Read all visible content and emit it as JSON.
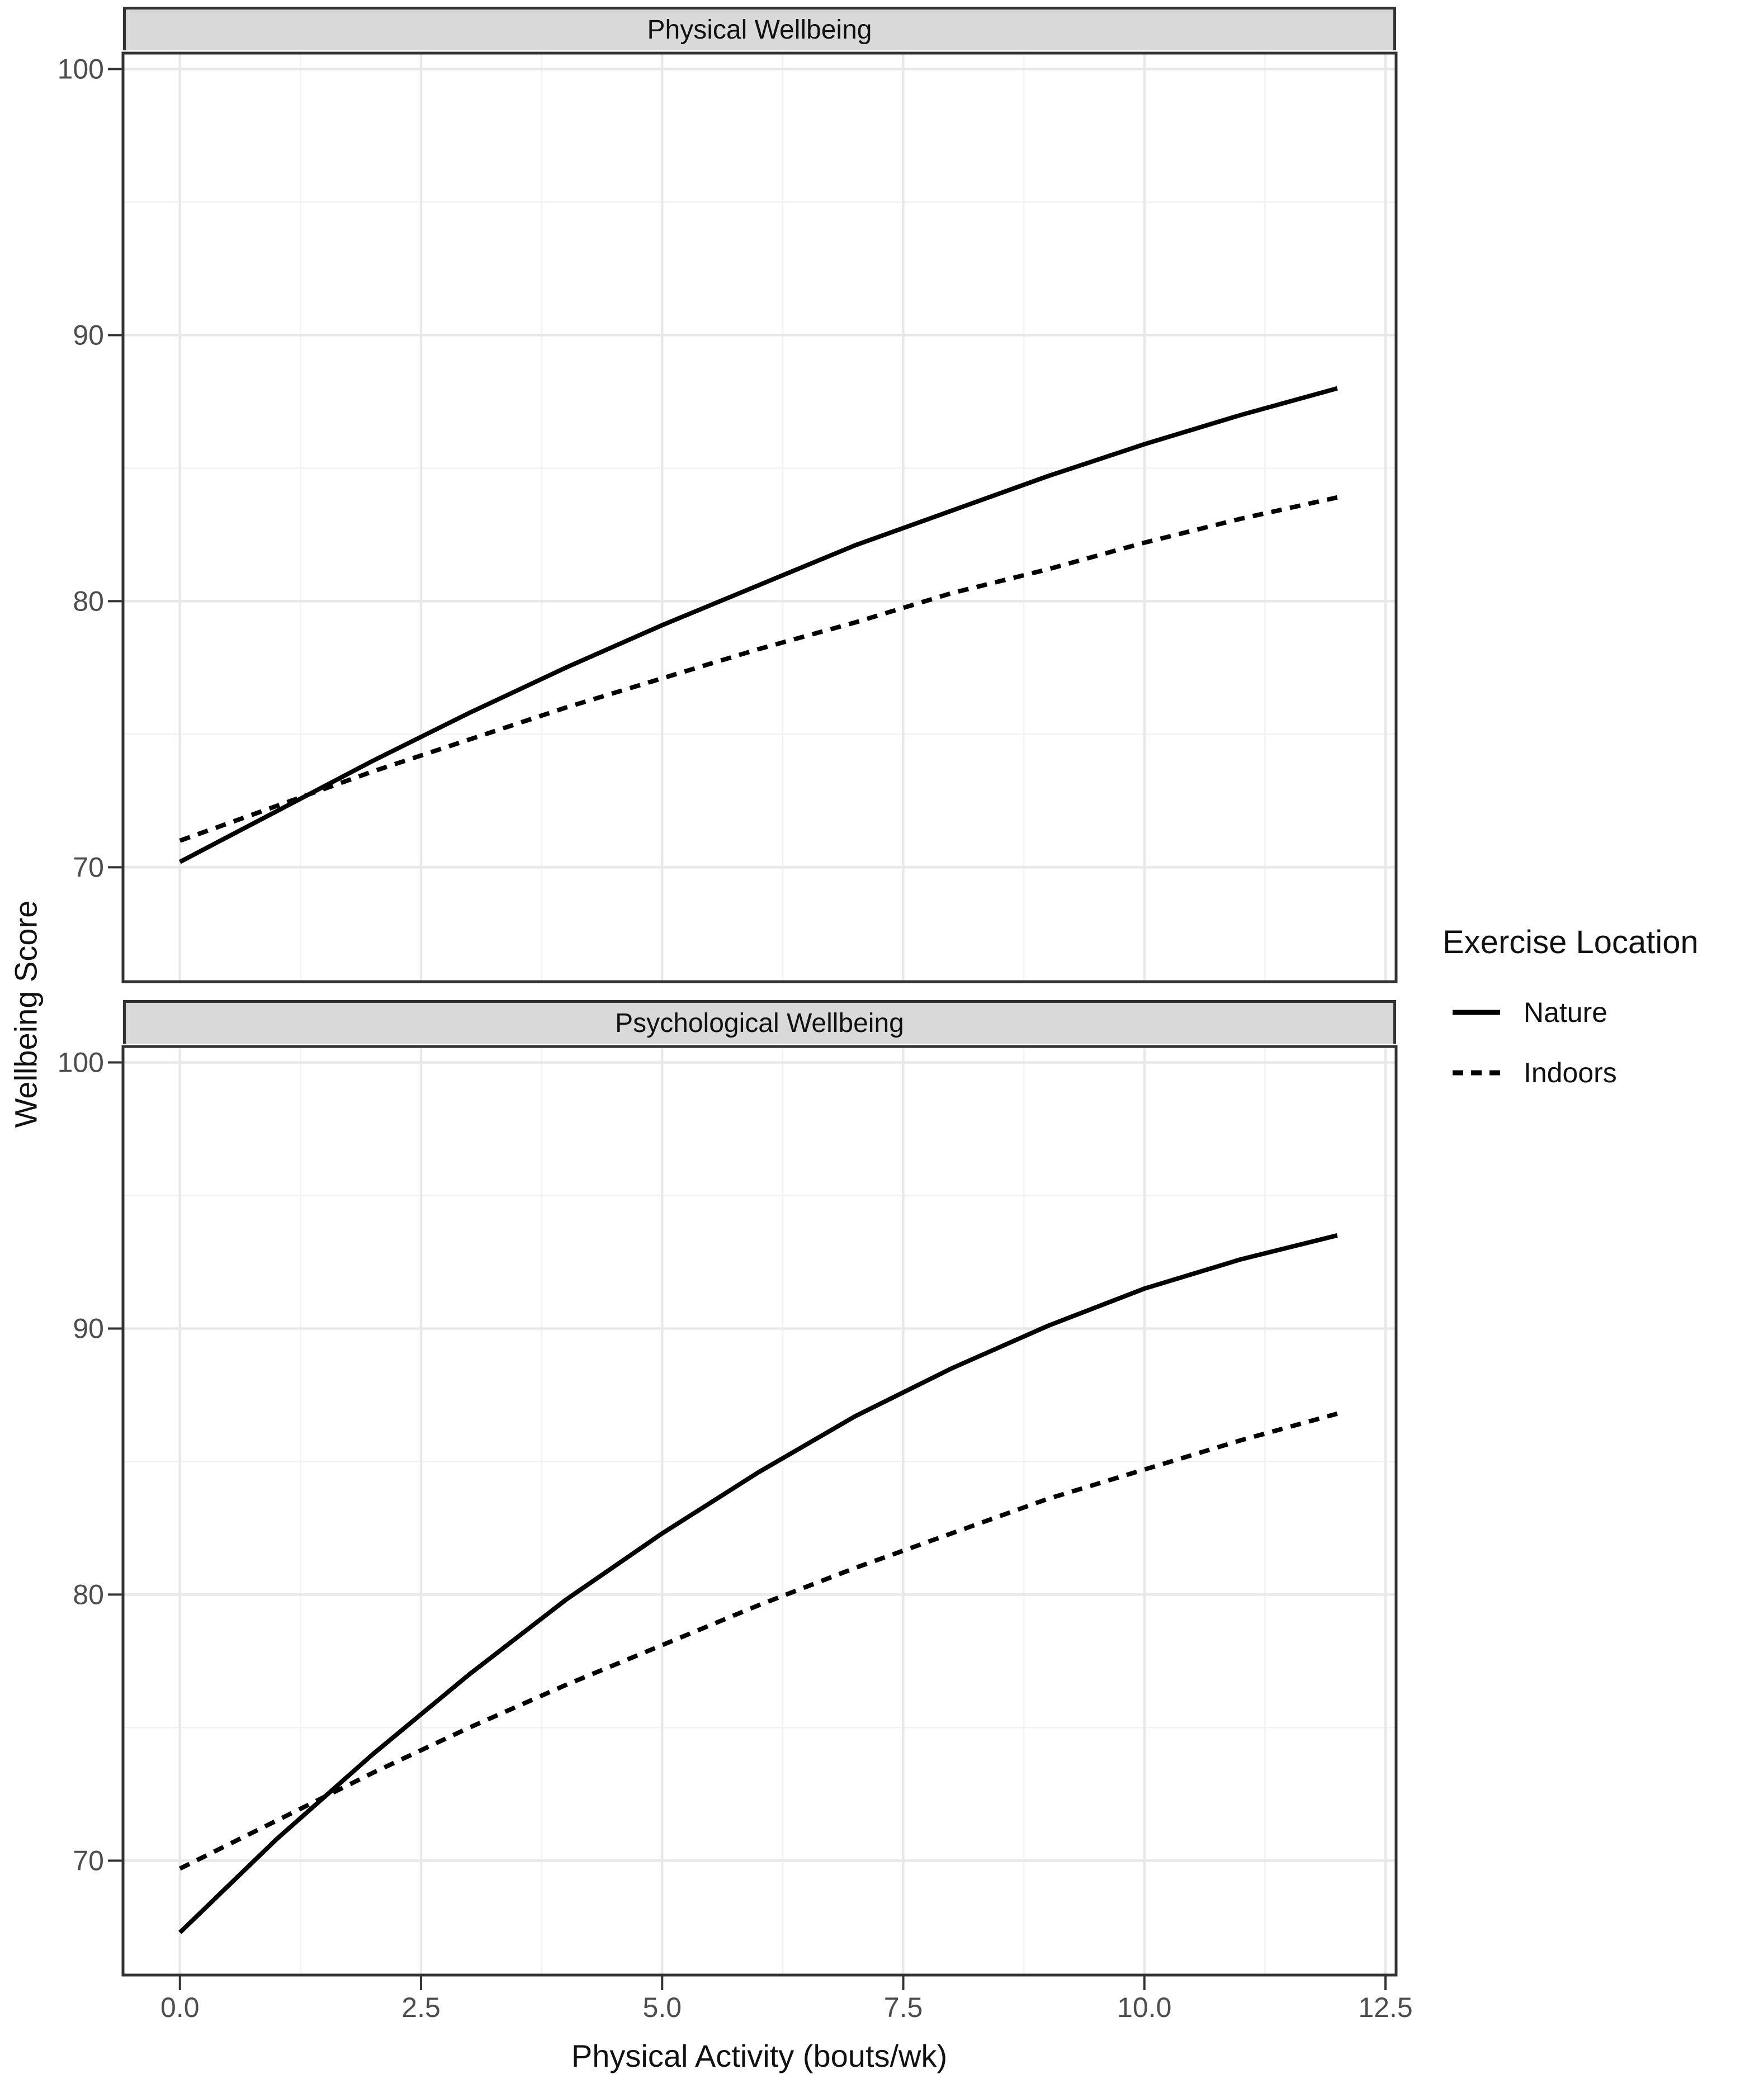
{
  "figure": {
    "y_axis_title": "Wellbeing Score",
    "x_axis_title": "Physical Activity (bouts/wk)",
    "legend": {
      "title": "Exercise Location",
      "items": [
        {
          "label": "Nature",
          "linetype": "solid"
        },
        {
          "label": "Indoors",
          "linetype": "dashed"
        }
      ]
    },
    "colors": {
      "line": "#000000",
      "strip_bg": "#d9d9d9",
      "panel_border": "#333333",
      "grid_major": "#e8e8e8",
      "grid_minor": "#f2f2f2",
      "tick_text": "#4d4d4d",
      "tick_mark": "#333333"
    }
  },
  "chart_data": [
    {
      "type": "line",
      "facet": "Physical Wellbeing",
      "xlabel": "Physical Activity (bouts/wk)",
      "ylabel": "Wellbeing Score",
      "xlim": [
        -0.59,
        12.61
      ],
      "ylim": [
        65.7,
        100.6
      ],
      "x_ticks": [
        0.0,
        2.5,
        5.0,
        7.5,
        10.0,
        12.5
      ],
      "x_tick_labels": [
        "0.0",
        "2.5",
        "5.0",
        "7.5",
        "10.0",
        "12.5"
      ],
      "y_ticks": [
        70,
        80,
        90,
        100
      ],
      "y_tick_labels": [
        "70",
        "80",
        "90",
        "100"
      ],
      "x_minor_ticks": [
        1.25,
        3.75,
        6.25,
        8.75,
        11.25
      ],
      "y_minor_ticks": [
        75,
        85,
        95
      ],
      "grid": true,
      "legend_position": "right",
      "x": [
        0,
        1,
        2,
        3,
        4,
        5,
        6,
        7,
        8,
        9,
        10,
        11,
        12
      ],
      "series": [
        {
          "name": "Nature",
          "linetype": "solid",
          "values": [
            70.2,
            72.1,
            74.0,
            75.8,
            77.5,
            79.1,
            80.6,
            82.1,
            83.4,
            84.7,
            85.9,
            87.0,
            88.0
          ]
        },
        {
          "name": "Indoors",
          "linetype": "dashed",
          "values": [
            71.0,
            72.3,
            73.6,
            74.8,
            76.0,
            77.1,
            78.2,
            79.2,
            80.3,
            81.2,
            82.2,
            83.1,
            83.9
          ]
        }
      ]
    },
    {
      "type": "line",
      "facet": "Psychological Wellbeing",
      "xlabel": "Physical Activity (bouts/wk)",
      "ylabel": "Wellbeing Score",
      "xlim": [
        -0.59,
        12.61
      ],
      "ylim": [
        65.7,
        100.6
      ],
      "x_ticks": [
        0.0,
        2.5,
        5.0,
        7.5,
        10.0,
        12.5
      ],
      "x_tick_labels": [
        "0.0",
        "2.5",
        "5.0",
        "7.5",
        "10.0",
        "12.5"
      ],
      "y_ticks": [
        70,
        80,
        90,
        100
      ],
      "y_tick_labels": [
        "70",
        "80",
        "90",
        "100"
      ],
      "x_minor_ticks": [
        1.25,
        3.75,
        6.25,
        8.75,
        11.25
      ],
      "y_minor_ticks": [
        75,
        85,
        95
      ],
      "grid": true,
      "legend_position": "right",
      "x": [
        0,
        1,
        2,
        3,
        4,
        5,
        6,
        7,
        8,
        9,
        10,
        11,
        12
      ],
      "series": [
        {
          "name": "Nature",
          "linetype": "solid",
          "values": [
            67.3,
            70.8,
            74.0,
            77.0,
            79.8,
            82.3,
            84.6,
            86.7,
            88.5,
            90.1,
            91.5,
            92.6,
            93.5
          ]
        },
        {
          "name": "Indoors",
          "linetype": "dashed",
          "values": [
            69.7,
            71.5,
            73.3,
            75.0,
            76.6,
            78.1,
            79.6,
            81.0,
            82.3,
            83.6,
            84.7,
            85.8,
            86.8
          ]
        }
      ]
    }
  ]
}
